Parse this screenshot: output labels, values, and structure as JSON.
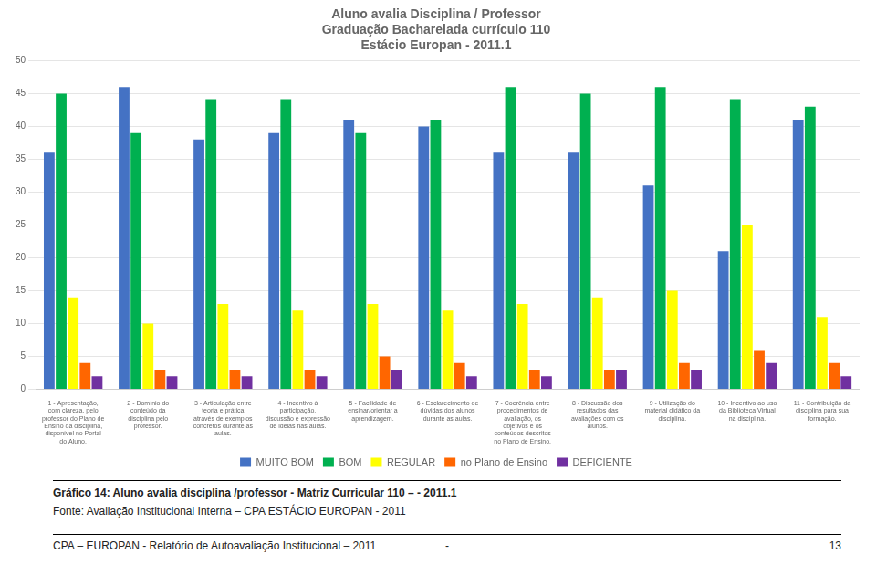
{
  "chart_data": {
    "type": "bar",
    "title": "Aluno avalia Disciplina / Professor\nGraduação Bacharelada currículo 110\nEstácio Europan - 2011.1",
    "categories": [
      "1 - Apresentação,\ncom clareza, pelo\nprofessor do Plano de\nEnsino da disciplina,\ndisponível no Portal\ndo Aluno.",
      "2 - Domínio do\nconteúdo da\ndisciplina pelo\nprofessor.",
      "3 - Articulação entre\nteoria e prática\natravés de exemplos\nconcretos durante as\naulas.",
      "4 - Incentivo à\nparticipação,\ndiscussão e expressão\nde idéias nas aulas.",
      "5 - Facilidade de\nensinar/orientar a\naprendizagem.",
      "6 - Esclarecimento de\ndúvidas dos alunos\ndurante as aulas.",
      "7 - Coerência entre\nprocedimentos de\navaliação, os\nobjetivos e os\nconteúdos descritos\nno Plano de Ensino.",
      "8 - Discussão dos\nresultados das\navaliações com os\nalunos.",
      "9 - Utilização do\nmaterial didático da\ndisciplina.",
      "10 - Incentivo ao uso\nda Biblioteca Virtual\nna disciplina.",
      "11 - Contribuição da\ndisciplina para sua\nformação."
    ],
    "series": [
      {
        "name": "MUITO BOM",
        "color": "#4472C4",
        "values": [
          36,
          46,
          38,
          39,
          41,
          40,
          36,
          36,
          31,
          21,
          41
        ]
      },
      {
        "name": "BOM",
        "color": "#00B050",
        "values": [
          45,
          39,
          44,
          44,
          39,
          41,
          46,
          45,
          46,
          44,
          43
        ]
      },
      {
        "name": "REGULAR",
        "color": "#FFFF00",
        "values": [
          14,
          10,
          13,
          12,
          13,
          12,
          13,
          14,
          15,
          25,
          11
        ]
      },
      {
        "name": "no Plano de Ensino",
        "color": "#FF6600",
        "values": [
          4,
          3,
          3,
          3,
          5,
          4,
          3,
          3,
          4,
          6,
          4
        ]
      },
      {
        "name": "DEFICIENTE",
        "color": "#7030A0",
        "values": [
          2,
          2,
          2,
          2,
          3,
          2,
          2,
          3,
          3,
          4,
          2
        ]
      }
    ],
    "ylim": [
      0,
      50
    ],
    "yticks": [
      0,
      5,
      10,
      15,
      20,
      25,
      30,
      35,
      40,
      45,
      50
    ],
    "grid": true,
    "legend": "bottom",
    "annotations": [
      "Gráfico 14: Aluno avalia disciplina /professor - Matriz Curricular 110 – - 2011.1",
      "Fonte: Avaliação Institucional Interna – CPA ESTÁCIO EUROPAN - 2011",
      "CPA – EUROPAN - Relatório de Autoavaliação Institucional – 2011",
      "-",
      "13"
    ]
  }
}
